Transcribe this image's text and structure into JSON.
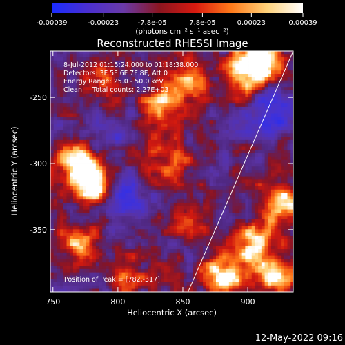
{
  "colorbar": {
    "tick_labels": [
      "-0.00039",
      "-0.00023",
      "-7.8e-05",
      "7.8e-05",
      "0.00023",
      "0.00039"
    ],
    "tick_values": [
      -0.00039,
      -0.00023,
      -7.8e-05,
      7.8e-05,
      0.00023,
      0.00039
    ],
    "range": [
      -0.00039,
      0.00039
    ],
    "unit_label": "(photons cm⁻² s⁻¹ asec⁻²)",
    "colors": [
      "#1a2cff",
      "#4a2fd0",
      "#6a3aa8",
      "#8a1520",
      "#d81a10",
      "#ff7a1a",
      "#ffd27a",
      "#ffffff"
    ]
  },
  "chart_data": {
    "type": "heatmap",
    "title": "Reconstructed RHESSI Image",
    "xlabel": "Heliocentric X (arcsec)",
    "ylabel": "Heliocentric Y (arcsec)",
    "xlim": [
      748,
      935
    ],
    "ylim": [
      -397,
      -215
    ],
    "x_ticks": [
      750,
      800,
      850,
      900
    ],
    "y_ticks": [
      -250,
      -300,
      -350
    ],
    "info_lines": [
      "8-Jul-2012 01:15:24.000 to 01:18:38.000",
      "Detectors: 3F 5F 6F 7F 8F, Att 0",
      "Energy Range: 25.0 - 50.0 keV",
      "Clean     Total counts: 2.27E+03"
    ],
    "peak_label": "Position of Peak = [782,-317]",
    "peak": [
      782,
      -317
    ],
    "limb_line": [
      [
        854,
        -397
      ],
      [
        935,
        -215
      ]
    ],
    "hotspots": [
      {
        "x": 782,
        "y": -317,
        "intensity": 1.0
      },
      {
        "x": 768,
        "y": -300,
        "intensity": 0.85
      },
      {
        "x": 770,
        "y": -360,
        "intensity": 0.6
      },
      {
        "x": 912,
        "y": -222,
        "intensity": 0.95
      },
      {
        "x": 896,
        "y": -232,
        "intensity": 0.7
      },
      {
        "x": 925,
        "y": -330,
        "intensity": 0.9
      },
      {
        "x": 905,
        "y": -360,
        "intensity": 0.8
      },
      {
        "x": 880,
        "y": -385,
        "intensity": 0.85
      },
      {
        "x": 920,
        "y": -385,
        "intensity": 0.75
      },
      {
        "x": 832,
        "y": -258,
        "intensity": 0.65
      },
      {
        "x": 855,
        "y": -238,
        "intensity": 0.5
      },
      {
        "x": 820,
        "y": -300,
        "intensity": 0.45
      },
      {
        "x": 845,
        "y": -300,
        "intensity": 0.4
      },
      {
        "x": 862,
        "y": -345,
        "intensity": 0.4
      },
      {
        "x": 808,
        "y": -385,
        "intensity": 0.45
      },
      {
        "x": 788,
        "y": -232,
        "intensity": 0.4
      }
    ],
    "coldspots": [
      {
        "x": 920,
        "y": -262,
        "intensity": 0.9
      },
      {
        "x": 800,
        "y": -330,
        "intensity": 0.6
      },
      {
        "x": 810,
        "y": -315,
        "intensity": 0.5
      },
      {
        "x": 795,
        "y": -280,
        "intensity": 0.35
      }
    ]
  },
  "footer": {
    "timestamp": "12-May-2022 09:16"
  }
}
